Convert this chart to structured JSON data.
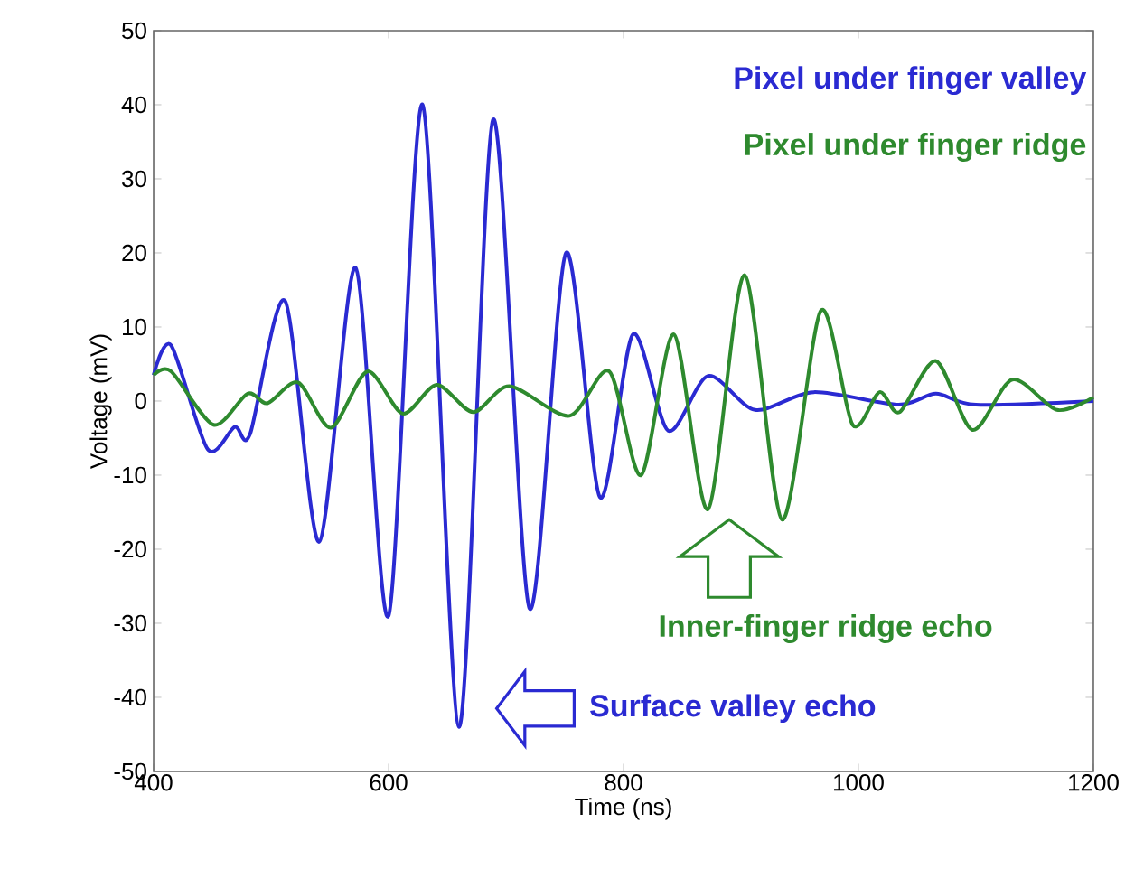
{
  "chart_data": {
    "type": "line",
    "xlabel": "Time (ns)",
    "ylabel": "Voltage (mV)",
    "xlim": [
      400,
      1200
    ],
    "ylim": [
      -50,
      50
    ],
    "xticks": [
      400,
      600,
      800,
      1000,
      1200
    ],
    "yticks": [
      -50,
      -40,
      -30,
      -20,
      -10,
      0,
      10,
      20,
      30,
      40,
      50
    ],
    "grid": false,
    "legend": false,
    "line_style": "solid",
    "marker": "none",
    "series": [
      {
        "name": "Pixel under finger valley",
        "color": "#2a2ad2",
        "x": [
          400,
          415,
          446,
          469,
          482,
          512,
          541,
          572,
          600,
          629,
          660,
          689,
          720,
          751,
          780,
          808,
          838,
          872,
          912,
          962,
          1034,
          1066,
          1100,
          1200
        ],
        "values": [
          3.5,
          7.5,
          -6.5,
          -3.5,
          -4.5,
          13.5,
          -19,
          18,
          -29,
          40,
          -44,
          38,
          -28,
          20,
          -13,
          9,
          -4,
          3.4,
          -1.2,
          1.2,
          -0.5,
          1,
          -0.5,
          0
        ]
      },
      {
        "name": "Pixel under finger ridge",
        "color": "#2e8a2e",
        "x": [
          400,
          415,
          451,
          480,
          497,
          523,
          551,
          582,
          612,
          641,
          672,
          703,
          754,
          788,
          815,
          843,
          872,
          903,
          935,
          968,
          995,
          1018,
          1035,
          1066,
          1097,
          1131,
          1169,
          1200
        ],
        "values": [
          3.5,
          4,
          -3.2,
          1,
          -0.3,
          2.5,
          -3.6,
          4,
          -1.7,
          2.2,
          -1.5,
          2,
          -2,
          4,
          -10,
          9,
          -14.6,
          17,
          -16,
          12.2,
          -3.2,
          1.2,
          -1.5,
          5.4,
          -3.9,
          2.9,
          -1.2,
          0.5
        ]
      }
    ],
    "annotations": [
      "Inner-finger ridge echo",
      "Surface valley echo"
    ]
  }
}
